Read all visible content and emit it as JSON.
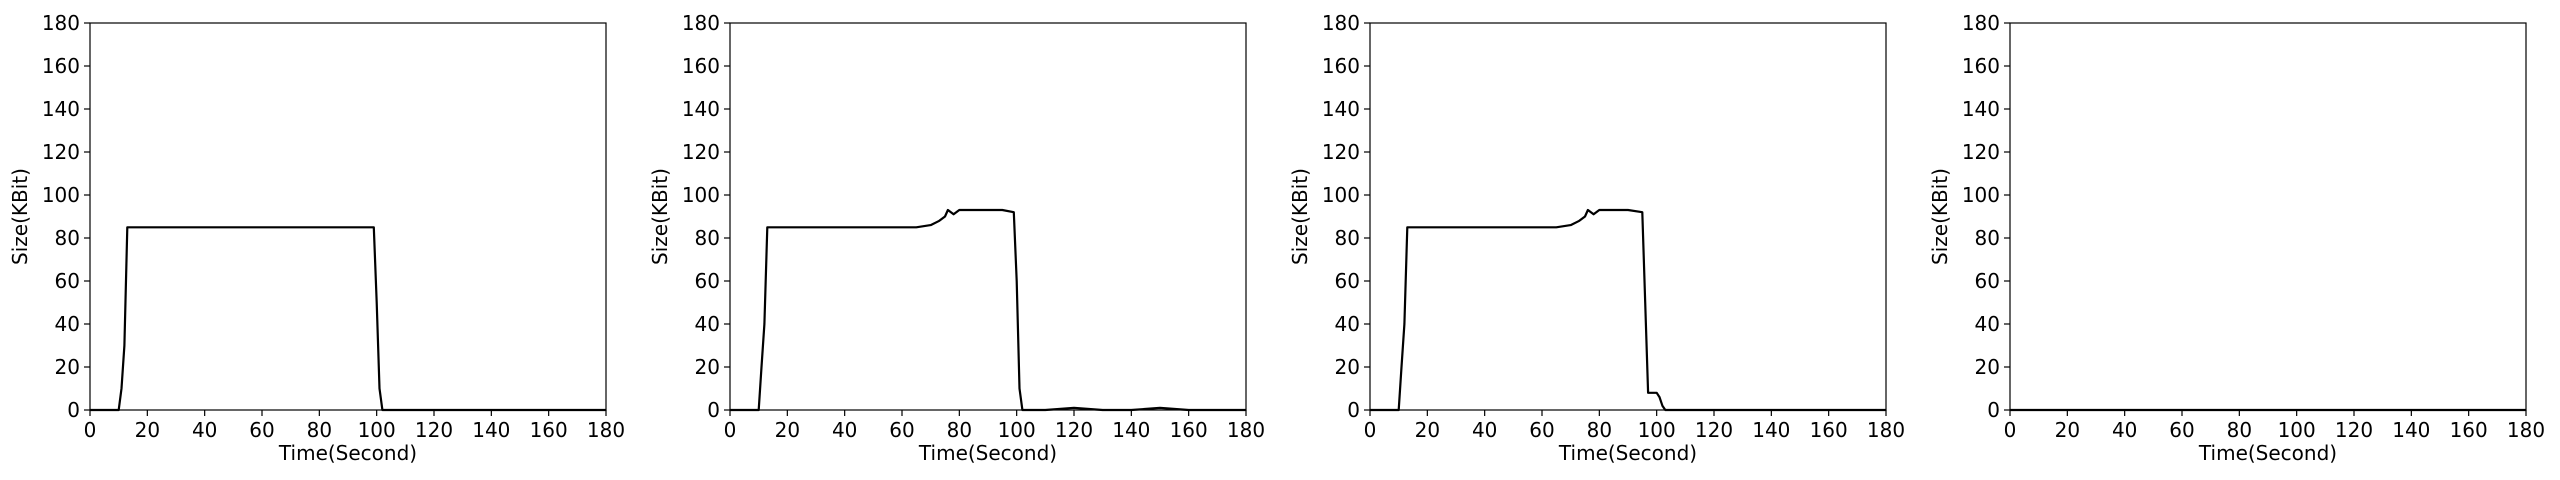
{
  "chart_data": [
    {
      "type": "line",
      "xlabel": "Time(Second)",
      "ylabel": "Size(KBit)",
      "xlim": [
        0,
        180
      ],
      "ylim": [
        0,
        180
      ],
      "xticks": [
        0,
        20,
        40,
        60,
        80,
        100,
        120,
        140,
        160,
        180
      ],
      "yticks": [
        0,
        20,
        40,
        60,
        80,
        100,
        120,
        140,
        160,
        180
      ],
      "grid": false,
      "color": "#000000",
      "series": [
        {
          "x": [
            0,
            5,
            10,
            11,
            12,
            13,
            20,
            40,
            60,
            80,
            99,
            100,
            101,
            102,
            110,
            140,
            180
          ],
          "y": [
            0,
            0,
            0,
            10,
            30,
            85,
            85,
            85,
            85,
            85,
            85,
            50,
            10,
            0,
            0,
            0,
            0
          ]
        }
      ]
    },
    {
      "type": "line",
      "xlabel": "Time(Second)",
      "ylabel": "Size(KBit)",
      "xlim": [
        0,
        180
      ],
      "ylim": [
        0,
        180
      ],
      "xticks": [
        0,
        20,
        40,
        60,
        80,
        100,
        120,
        140,
        160,
        180
      ],
      "yticks": [
        0,
        20,
        40,
        60,
        80,
        100,
        120,
        140,
        160,
        180
      ],
      "grid": false,
      "color": "#000000",
      "series": [
        {
          "x": [
            0,
            5,
            10,
            11,
            12,
            13,
            20,
            30,
            40,
            50,
            60,
            65,
            70,
            73,
            75,
            76,
            78,
            80,
            85,
            90,
            95,
            99,
            100,
            101,
            102,
            105,
            110,
            120,
            130,
            140,
            150,
            160,
            170,
            180
          ],
          "y": [
            0,
            0,
            0,
            20,
            40,
            85,
            85,
            85,
            85,
            85,
            85,
            85,
            86,
            88,
            90,
            93,
            91,
            93,
            93,
            93,
            93,
            92,
            60,
            10,
            0,
            0,
            0,
            1,
            0,
            0,
            1,
            0,
            0,
            0
          ]
        }
      ]
    },
    {
      "type": "line",
      "xlabel": "Time(Second)",
      "ylabel": "Size(KBit)",
      "xlim": [
        0,
        180
      ],
      "ylim": [
        0,
        180
      ],
      "xticks": [
        0,
        20,
        40,
        60,
        80,
        100,
        120,
        140,
        160,
        180
      ],
      "yticks": [
        0,
        20,
        40,
        60,
        80,
        100,
        120,
        140,
        160,
        180
      ],
      "grid": false,
      "color": "#000000",
      "series": [
        {
          "x": [
            0,
            5,
            10,
            11,
            12,
            13,
            20,
            30,
            40,
            50,
            60,
            65,
            70,
            73,
            75,
            76,
            78,
            80,
            85,
            90,
            95,
            96,
            97,
            98,
            100,
            101,
            102,
            103,
            105,
            110,
            140,
            180
          ],
          "y": [
            0,
            0,
            0,
            20,
            40,
            85,
            85,
            85,
            85,
            85,
            85,
            85,
            86,
            88,
            90,
            93,
            91,
            93,
            93,
            93,
            92,
            50,
            8,
            8,
            8,
            6,
            2,
            0,
            0,
            0,
            0,
            0
          ]
        }
      ]
    },
    {
      "type": "line",
      "xlabel": "Time(Second)",
      "ylabel": "Size(KBit)",
      "xlim": [
        0,
        180
      ],
      "ylim": [
        0,
        180
      ],
      "xticks": [
        0,
        20,
        40,
        60,
        80,
        100,
        120,
        140,
        160,
        180
      ],
      "yticks": [
        0,
        20,
        40,
        60,
        80,
        100,
        120,
        140,
        160,
        180
      ],
      "grid": false,
      "color": "#000000",
      "series": [
        {
          "x": [
            0,
            180
          ],
          "y": [
            0,
            0
          ]
        }
      ]
    }
  ]
}
